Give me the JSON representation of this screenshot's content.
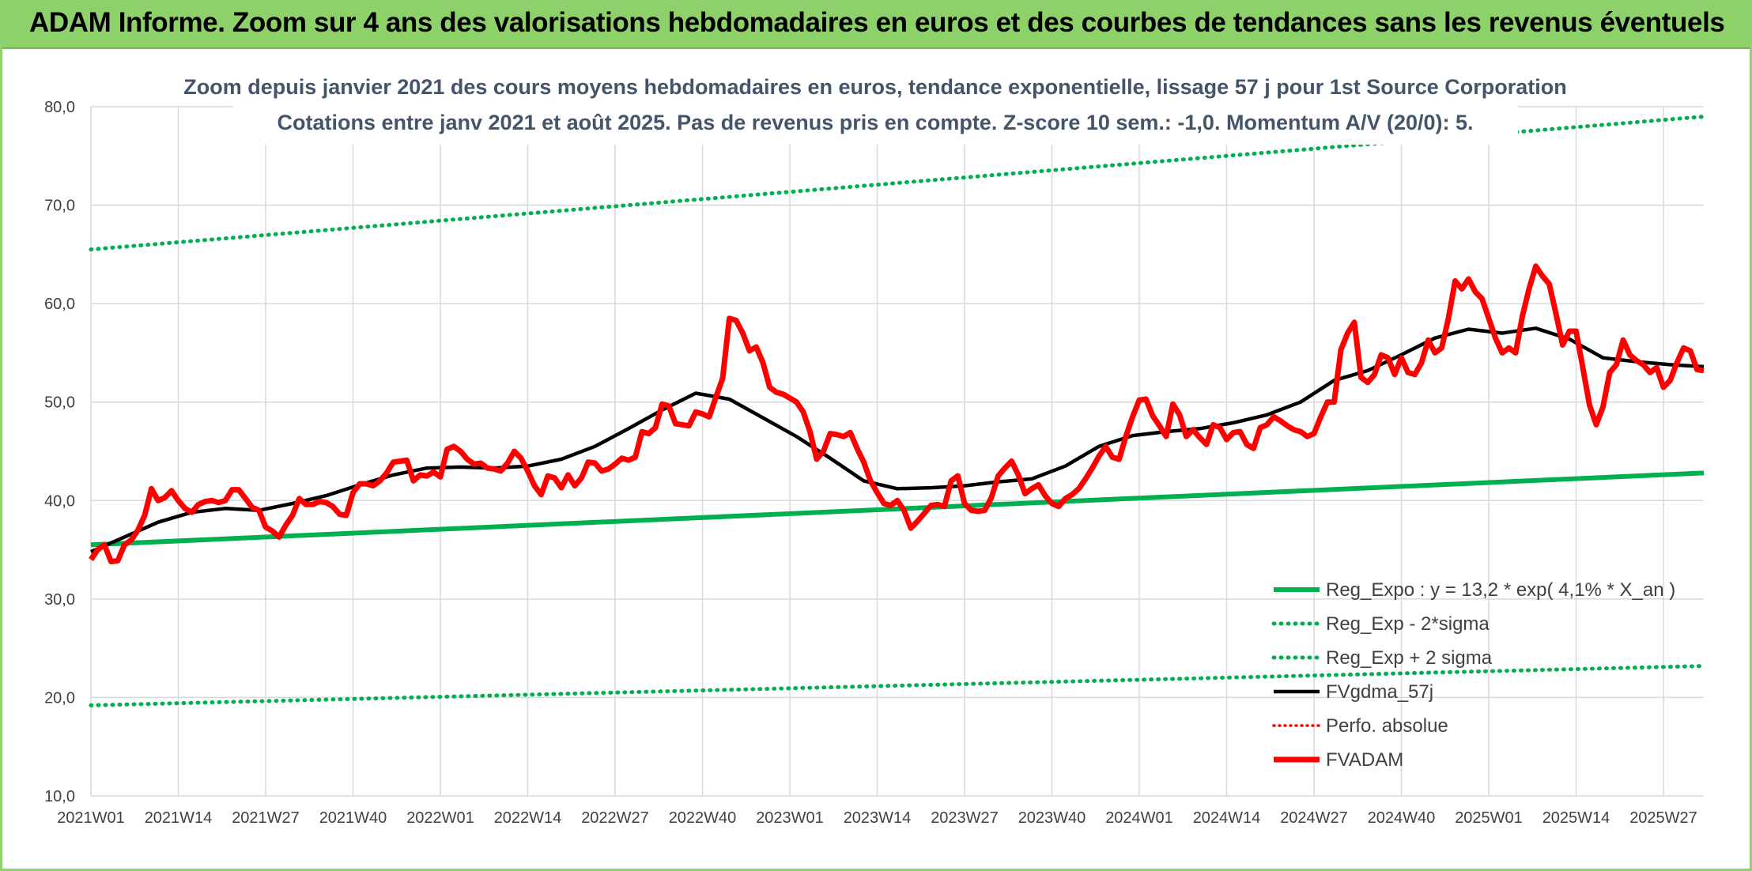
{
  "banner": {
    "title": "ADAM Informe. Zoom sur 4 ans des valorisations hebdomadaires en euros et des courbes de tendances sans les revenus éventuels"
  },
  "chart_data": {
    "type": "line",
    "title": "Zoom depuis janvier 2021 des cours moyens hebdomadaires en euros, tendance exponentielle, lissage 57 j pour 1st Source Corporation",
    "subtitle": "Cotations entre janv 2021 et août 2025. Pas de revenus pris en compte. Z-score 10 sem.: -1,0. Momentum A/V (20/0): 5.",
    "ylim": [
      10,
      80
    ],
    "y_ticks": [
      "10,0",
      "20,0",
      "30,0",
      "40,0",
      "50,0",
      "60,0",
      "70,0",
      "80,0"
    ],
    "x_ticks": [
      "2021W01",
      "2021W14",
      "2021W27",
      "2021W40",
      "2022W01",
      "2022W14",
      "2022W27",
      "2022W40",
      "2023W01",
      "2023W14",
      "2023W27",
      "2023W40",
      "2024W01",
      "2024W14",
      "2024W27",
      "2024W40",
      "2025W01",
      "2025W14",
      "2025W27"
    ],
    "grid": "vertical and horizontal gridlines",
    "legend_position": "right",
    "colors": {
      "green": "#00b050",
      "black": "#000000",
      "red": "#ff0000",
      "grid": "#d9d9d9"
    },
    "series": [
      {
        "name": "Reg_Expo : y = 13,2 * exp( 4,1% *  X_an )",
        "style": "solid-thick-green",
        "x": [
          0,
          240
        ],
        "values": [
          35.5,
          42.8
        ]
      },
      {
        "name": "Reg_Exp - 2*sigma",
        "style": "dotted-green",
        "x": [
          0,
          240
        ],
        "values": [
          19.2,
          23.2
        ]
      },
      {
        "name": "Reg_Exp + 2 sigma",
        "style": "dotted-green",
        "x": [
          0,
          240
        ],
        "values": [
          65.5,
          79.0
        ]
      },
      {
        "name": "FVgdma_57j",
        "style": "solid-black",
        "x": [
          0,
          5,
          10,
          15,
          20,
          25,
          30,
          35,
          40,
          45,
          50,
          55,
          60,
          65,
          70,
          75,
          80,
          85,
          90,
          95,
          100,
          105,
          110,
          115,
          120,
          125,
          130,
          135,
          140,
          145,
          150,
          155,
          160,
          165,
          170,
          175,
          180,
          185,
          190,
          195,
          200,
          205,
          210,
          215,
          220,
          225,
          230,
          235,
          240
        ],
        "values": [
          34.8,
          36.3,
          37.8,
          38.8,
          39.2,
          39.0,
          39.7,
          40.5,
          41.6,
          42.6,
          43.3,
          43.4,
          43.3,
          43.5,
          44.2,
          45.5,
          47.3,
          49.2,
          50.9,
          50.3,
          48.4,
          46.5,
          44.3,
          42.0,
          41.2,
          41.3,
          41.5,
          41.9,
          42.2,
          43.5,
          45.5,
          46.6,
          47.0,
          47.3,
          47.9,
          48.7,
          50.0,
          52.2,
          53.2,
          54.8,
          56.5,
          57.4,
          57.0,
          57.5,
          56.4,
          54.5,
          54.1,
          53.8,
          53.6
        ]
      },
      {
        "name": "Perfo. absolue",
        "style": "dotted-red",
        "x": [],
        "values": []
      },
      {
        "name": "FVADAM",
        "style": "solid-thick-red",
        "x": [
          0,
          1,
          2,
          3,
          4,
          5,
          6,
          7,
          8,
          9,
          10,
          11,
          12,
          13,
          14,
          15,
          16,
          17,
          18,
          19,
          20,
          21,
          22,
          23,
          24,
          25,
          26,
          27,
          28,
          29,
          30,
          31,
          32,
          33,
          34,
          35,
          36,
          37,
          38,
          39,
          40,
          41,
          42,
          43,
          44,
          45,
          46,
          47,
          48,
          49,
          50,
          51,
          52,
          53,
          54,
          55,
          56,
          57,
          58,
          59,
          60,
          61,
          62,
          63,
          64,
          65,
          66,
          67,
          68,
          69,
          70,
          71,
          72,
          73,
          74,
          75,
          76,
          77,
          78,
          79,
          80,
          81,
          82,
          83,
          84,
          85,
          86,
          87,
          88,
          89,
          90,
          91,
          92,
          93,
          94,
          95,
          96,
          97,
          98,
          99,
          100,
          101,
          102,
          103,
          104,
          105,
          106,
          107,
          108,
          109,
          110,
          111,
          112,
          113,
          114,
          115,
          116,
          117,
          118,
          119,
          120,
          121,
          122,
          123,
          124,
          125,
          126,
          127,
          128,
          129,
          130,
          131,
          132,
          133,
          134,
          135,
          136,
          137,
          138,
          139,
          140,
          141,
          142,
          143,
          144,
          145,
          146,
          147,
          148,
          149,
          150,
          151,
          152,
          153,
          154,
          155,
          156,
          157,
          158,
          159,
          160,
          161,
          162,
          163,
          164,
          165,
          166,
          167,
          168,
          169,
          170,
          171,
          172,
          173,
          174,
          175,
          176,
          177,
          178,
          179,
          180,
          181,
          182,
          183,
          184,
          185,
          186,
          187,
          188,
          189,
          190,
          191,
          192,
          193,
          194,
          195,
          196,
          197,
          198,
          199,
          200,
          201,
          202,
          203,
          204,
          205,
          206,
          207,
          208,
          209,
          210,
          211,
          212,
          213,
          214,
          215,
          216,
          217,
          218,
          219,
          220,
          221,
          222,
          223,
          224,
          225,
          226,
          227,
          228,
          229,
          230,
          231,
          232,
          233,
          234,
          235,
          236,
          237,
          238,
          239,
          240
        ],
        "values": [
          34.0,
          35.0,
          35.5,
          33.8,
          33.9,
          35.5,
          36.0,
          37.0,
          38.5,
          41.2,
          40.0,
          40.3,
          41.0,
          40.0,
          39.2,
          38.8,
          39.6,
          39.9,
          40.0,
          39.8,
          40.0,
          41.1,
          41.1,
          40.2,
          39.3,
          39.0,
          37.3,
          36.9,
          36.3,
          37.5,
          38.5,
          40.2,
          39.6,
          39.6,
          39.9,
          39.8,
          39.4,
          38.6,
          38.5,
          40.8,
          41.7,
          41.7,
          41.5,
          42.0,
          42.8,
          43.9,
          44.0,
          44.1,
          42.0,
          42.6,
          42.5,
          42.9,
          42.4,
          45.2,
          45.5,
          45.0,
          44.2,
          43.7,
          43.8,
          43.3,
          43.2,
          43.0,
          43.8,
          45.0,
          44.3,
          43.0,
          41.5,
          40.6,
          42.5,
          42.3,
          41.3,
          42.6,
          41.5,
          42.3,
          43.9,
          43.8,
          43.0,
          43.2,
          43.7,
          44.3,
          44.1,
          44.4,
          47.0,
          46.8,
          47.4,
          49.8,
          49.6,
          47.8,
          47.7,
          47.6,
          49.0,
          48.8,
          48.5,
          50.5,
          52.4,
          58.5,
          58.3,
          57.0,
          55.2,
          55.6,
          54.0,
          51.5,
          51.0,
          50.8,
          50.4,
          50.0,
          49.0,
          47.0,
          44.2,
          45.0,
          46.8,
          46.7,
          46.5,
          46.9,
          45.3,
          43.9,
          42.0,
          40.8,
          39.7,
          39.5,
          40.0,
          39.0,
          37.2,
          37.9,
          38.7,
          39.5,
          39.6,
          39.4,
          42.0,
          42.5,
          39.7,
          39.0,
          38.9,
          39.0,
          40.3,
          42.5,
          43.3,
          44.0,
          42.6,
          40.7,
          41.2,
          41.6,
          40.5,
          39.7,
          39.4,
          40.2,
          40.6,
          41.2,
          42.2,
          43.3,
          44.5,
          45.5,
          44.4,
          44.2,
          46.5,
          48.5,
          50.2,
          50.3,
          48.6,
          47.6,
          46.5,
          49.8,
          48.7,
          46.5,
          47.2,
          46.4,
          45.7,
          47.7,
          47.4,
          46.2,
          46.9,
          47.0,
          45.7,
          45.3,
          47.4,
          47.7,
          48.5,
          48.1,
          47.6,
          47.2,
          47.0,
          46.5,
          46.8,
          48.5,
          50.0,
          50.0,
          55.3,
          57.0,
          58.1,
          52.5,
          52.0,
          52.8,
          54.8,
          54.5,
          52.8,
          54.5,
          53.0,
          52.8,
          54.0,
          56.3,
          55.0,
          55.5,
          58.5,
          62.3,
          61.5,
          62.5,
          61.2,
          60.5,
          58.5,
          56.5,
          55.0,
          55.5,
          55.0,
          58.7,
          61.5,
          63.8,
          62.8,
          62.0,
          59.0,
          55.8,
          57.2,
          57.2,
          53.5,
          49.7,
          47.7,
          49.5,
          53.0,
          53.8,
          56.3,
          54.8,
          54.2,
          53.8,
          53.0,
          53.5,
          51.5,
          52.2,
          54.0,
          55.5,
          55.2,
          53.3,
          53.2
        ]
      }
    ]
  }
}
